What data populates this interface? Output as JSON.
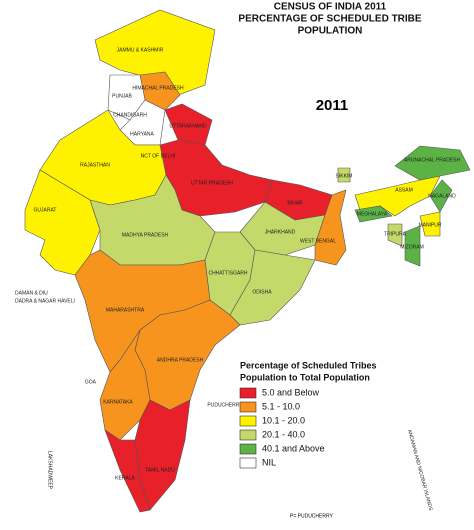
{
  "title": [
    "CENSUS OF INDIA 2011",
    "PERCENTAGE OF SCHEDULED TRIBE",
    "POPULATION"
  ],
  "year": "2011",
  "legend": {
    "title": [
      "Percentage of Scheduled Tribes",
      "Population  to Total Population"
    ],
    "items": [
      {
        "label": "5.0 and Below",
        "color": "#e8202a"
      },
      {
        "label": "5.1 - 10.0",
        "color": "#f7941d"
      },
      {
        "label": "10.1 - 20.0",
        "color": "#fff200"
      },
      {
        "label": "20.1 - 40.0",
        "color": "#c4d96a"
      },
      {
        "label": "40.1 and Above",
        "color": "#5bb346"
      },
      {
        "label": "NIL",
        "color": "#ffffff"
      }
    ]
  },
  "regions": [
    {
      "name": "JAMMU & KASHMIR",
      "category": 2
    },
    {
      "name": "HIMACHAL PRADESH",
      "category": 1
    },
    {
      "name": "PUNJAB",
      "category": 5
    },
    {
      "name": "HARYANA",
      "category": 5
    },
    {
      "name": "UTTARAKHAND",
      "category": 0
    },
    {
      "name": "UTTAR PRADESH",
      "category": 0
    },
    {
      "name": "RAJASTHAN",
      "category": 2
    },
    {
      "name": "GUJARAT",
      "category": 2
    },
    {
      "name": "MADHYA PRADESH",
      "category": 3
    },
    {
      "name": "BIHAR",
      "category": 0
    },
    {
      "name": "JHARKHAND",
      "category": 3
    },
    {
      "name": "WEST BENGAL",
      "category": 1
    },
    {
      "name": "CHHATTISGARH",
      "category": 3
    },
    {
      "name": "ODISHA",
      "category": 3
    },
    {
      "name": "MAHARASHTRA",
      "category": 1
    },
    {
      "name": "ANDHRA PRADESH",
      "category": 1
    },
    {
      "name": "KARNATAKA",
      "category": 1
    },
    {
      "name": "TAMIL NADU",
      "category": 0
    },
    {
      "name": "KERALA",
      "category": 0
    },
    {
      "name": "SIKKIM",
      "category": 3
    },
    {
      "name": "ASSAM",
      "category": 2
    },
    {
      "name": "ARUNACHAL PRADESH",
      "category": 4
    },
    {
      "name": "MEGHALAYA",
      "category": 4
    },
    {
      "name": "NAGALAND",
      "category": 4
    },
    {
      "name": "MANIPUR",
      "category": 2
    },
    {
      "name": "MIZORAM",
      "category": 4
    },
    {
      "name": "TRIPURA",
      "category": 3
    }
  ],
  "other_labels": [
    "CHANDIGARH",
    "NCT OF DELHI",
    "DAMAN & DIU",
    "DADRA & NAGAR HAVELI",
    "GOA",
    "PUDUCHERRY",
    "LAKSHADWEEP",
    "ANDAMAN AND NICOBAR ISLANDS"
  ],
  "footnote": "P= PUDUCHERRY"
}
